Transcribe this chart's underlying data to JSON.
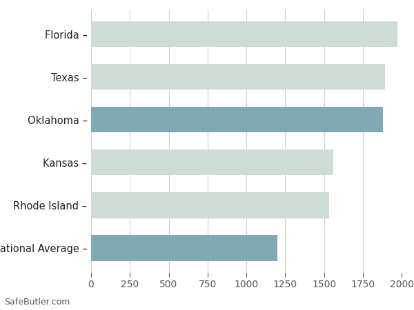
{
  "categories": [
    "Florida",
    "Texas",
    "Oklahoma",
    "Kansas",
    "Rhode Island",
    "National Average"
  ],
  "values": [
    1975,
    1893,
    1878,
    1559,
    1534,
    1200
  ],
  "bar_colors": [
    "#cdddd4",
    "#cdddd4",
    "#7faab5",
    "#cdddd4",
    "#cdddd4",
    "#7faab5"
  ],
  "background_color": "#ffffff",
  "grid_color": "#d0d0d0",
  "tick_color": "#555555",
  "label_color": "#222222",
  "xlim": [
    0,
    2000
  ],
  "xticks": [
    0,
    250,
    500,
    750,
    1000,
    1250,
    1500,
    1750,
    2000
  ],
  "bar_height": 0.6,
  "figsize": [
    6.0,
    4.5
  ],
  "dpi": 100,
  "footer_text": "SafeButler.com"
}
